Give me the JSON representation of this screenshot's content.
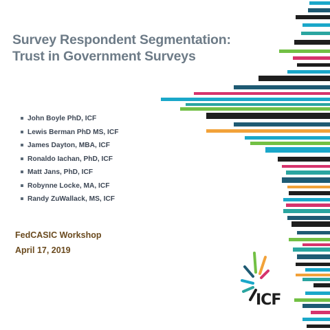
{
  "title": {
    "line1": "Survey Respondent Segmentation:",
    "line2": "Trust in Government Surveys"
  },
  "authors": [
    "John Boyle PhD, ICF",
    "Lewis Berman PhD MS, ICF",
    "James Dayton, MBA, ICF",
    "Ronaldo Iachan, PhD, ICF",
    "Matt Jans, PhD, ICF",
    "Robynne Locke, MA, ICF",
    "Randy ZuWallack, MS, ICF"
  ],
  "event": {
    "name": "FedCASIC Workshop",
    "date": "April 17, 2019"
  },
  "logo": {
    "text": "ICF"
  },
  "colors": {
    "title": "#6d7b87",
    "author_text": "#3c4654",
    "event_text": "#6a4a1e",
    "stripe_palette": [
      "#1e5a73",
      "#1aa7c9",
      "#72c044",
      "#d6336c",
      "#f2a23a",
      "#1e1e1e",
      "#2aa5a0"
    ]
  }
}
